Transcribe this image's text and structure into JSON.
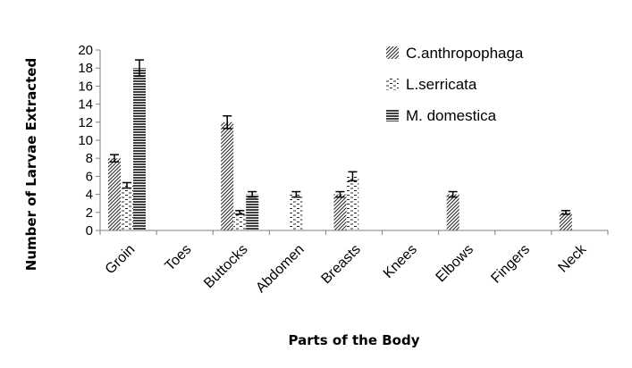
{
  "chart_data": {
    "type": "bar",
    "xlabel": "Parts of the Body",
    "ylabel": "Number of Larvae Extracted",
    "ylim": [
      0,
      20
    ],
    "yticks": [
      0,
      2,
      4,
      6,
      8,
      10,
      12,
      14,
      16,
      18,
      20
    ],
    "categories": [
      "Groin",
      "Toes",
      "Buttocks",
      "Abdomen",
      "Breasts",
      "Knees",
      "Elbows",
      "Fingers",
      "Neck"
    ],
    "series": [
      {
        "name": "C.anthropophaga",
        "pattern": "diagonal",
        "values": [
          8,
          0,
          12,
          0,
          4,
          0,
          4,
          0,
          2
        ],
        "errors": [
          0.4,
          0,
          0.7,
          0,
          0.3,
          0,
          0.3,
          0,
          0.2
        ]
      },
      {
        "name": "L.serricata",
        "pattern": "dashed",
        "values": [
          5,
          0,
          2,
          4,
          6,
          0,
          0,
          0,
          0
        ],
        "errors": [
          0.3,
          0,
          0.2,
          0.3,
          0.5,
          0,
          0,
          0,
          0
        ]
      },
      {
        "name": "M. domestica",
        "pattern": "horizontal",
        "values": [
          18,
          0,
          4,
          0,
          0,
          0,
          0,
          0,
          0
        ],
        "errors": [
          0.9,
          0,
          0.3,
          0,
          0,
          0,
          0,
          0,
          0
        ]
      }
    ],
    "legend_position": "top-right",
    "grid": false,
    "error_bars": true
  }
}
